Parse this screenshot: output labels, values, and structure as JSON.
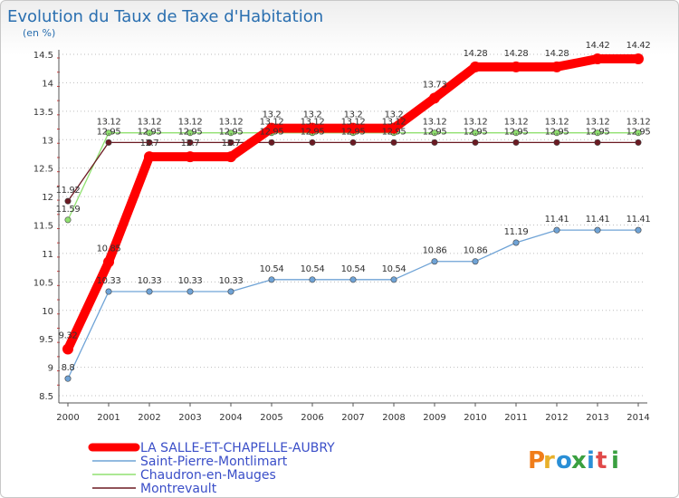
{
  "chart_data": {
    "type": "line",
    "title": "Evolution du Taux de Taxe d'Habitation",
    "subtitle": "(en %)",
    "xlabel": "",
    "ylabel": "",
    "x": [
      "2000",
      "2001",
      "2002",
      "2003",
      "2004",
      "2005",
      "2006",
      "2007",
      "2008",
      "2009",
      "2010",
      "2011",
      "2012",
      "2013",
      "2014"
    ],
    "ylim": [
      8.5,
      14.5
    ],
    "yticks": [
      {
        "v": 8.5,
        "label": "8.5"
      },
      {
        "v": 9,
        "label": "9"
      },
      {
        "v": 9.5,
        "label": "9.5"
      },
      {
        "v": 10,
        "label": "10"
      },
      {
        "v": 10.5,
        "label": "10.5"
      },
      {
        "v": 11,
        "label": "11"
      },
      {
        "v": 11.5,
        "label": "11.5"
      },
      {
        "v": 12,
        "label": "12"
      },
      {
        "v": 12.5,
        "label": "12.5"
      },
      {
        "v": 13,
        "label": "13"
      },
      {
        "v": 13.5,
        "label": "13.5"
      },
      {
        "v": 14,
        "label": "14"
      },
      {
        "v": 14.5,
        "label": "14.5"
      }
    ],
    "grid": "horizontal dotted",
    "legend_position": "bottom-left",
    "series": [
      {
        "name": "Saint-Pierre-Montlimart",
        "color": "#6fa3d6",
        "values": [
          8.8,
          10.33,
          10.33,
          10.33,
          10.33,
          10.54,
          10.54,
          10.54,
          10.54,
          10.86,
          10.86,
          11.19,
          11.41,
          11.41,
          11.41
        ],
        "labels": [
          "8.8",
          "10.33",
          "10.33",
          "10.33",
          "10.33",
          "10.54",
          "10.54",
          "10.54",
          "10.54",
          "10.86",
          "10.86",
          "11.19",
          "11.41",
          "11.41",
          "11.41"
        ]
      },
      {
        "name": "Chaudron-en-Mauges",
        "color": "#90e070",
        "values": [
          11.59,
          13.12,
          13.12,
          13.12,
          13.12,
          13.12,
          13.12,
          13.12,
          13.12,
          13.12,
          13.12,
          13.12,
          13.12,
          13.12,
          13.12
        ],
        "labels": [
          "11.59",
          "13.12",
          "13.12",
          "13.12",
          "13.12",
          "13.12",
          "13.12",
          "13.12",
          "13.12",
          "13.12",
          "13.12",
          "13.12",
          "13.12",
          "13.12",
          "13.12"
        ]
      },
      {
        "name": "Montrevault",
        "color": "#6b1a22",
        "values": [
          11.92,
          12.95,
          12.95,
          12.95,
          12.95,
          12.95,
          12.95,
          12.95,
          12.95,
          12.95,
          12.95,
          12.95,
          12.95,
          12.95,
          12.95
        ],
        "labels": [
          "11.92",
          "12.95",
          "12.95",
          "12.95",
          "12.95",
          "12.95",
          "12.95",
          "12.95",
          "12.95",
          "12.95",
          "12.95",
          "12.95",
          "12.95",
          "12.95",
          "12.95"
        ]
      },
      {
        "name": "LA SALLE-ET-CHAPELLE-AUBRY",
        "color": "#ff0000",
        "values": [
          9.32,
          10.85,
          12.7,
          12.7,
          12.7,
          13.2,
          13.2,
          13.2,
          13.2,
          13.73,
          14.28,
          14.28,
          14.28,
          14.42,
          14.42
        ],
        "labels": [
          "9.32",
          "10.85",
          "12.7",
          "12.7",
          "12.7",
          "13.2",
          "13.2",
          "13.2",
          "13.2",
          "13.73",
          "14.28",
          "14.28",
          "14.28",
          "14.42",
          "14.42"
        ]
      }
    ]
  },
  "brand": {
    "text": "Proxiti"
  }
}
